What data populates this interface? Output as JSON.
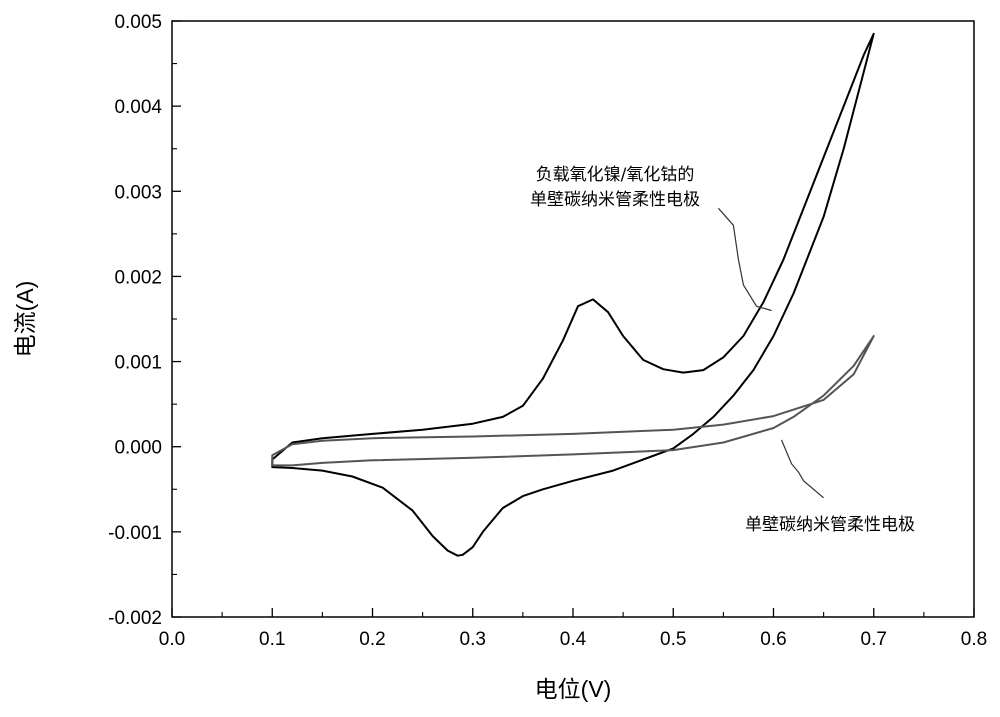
{
  "chart_data": {
    "type": "line",
    "title": "",
    "xlabel": "电位(V)",
    "ylabel": "电流(A)",
    "xlim": [
      0.0,
      0.8
    ],
    "ylim": [
      -0.002,
      0.005
    ],
    "xticks": [
      0.0,
      0.1,
      0.2,
      0.3,
      0.4,
      0.5,
      0.6,
      0.7,
      0.8
    ],
    "xtick_labels": [
      "0.0",
      "0.1",
      "0.2",
      "0.3",
      "0.4",
      "0.5",
      "0.6",
      "0.7",
      "0.8"
    ],
    "yticks": [
      -0.002,
      -0.001,
      0.0,
      0.001,
      0.002,
      0.003,
      0.004,
      0.005
    ],
    "ytick_labels": [
      "-0.002",
      "-0.001",
      "0.000",
      "0.001",
      "0.002",
      "0.003",
      "0.004",
      "0.005"
    ],
    "grid": false,
    "series": [
      {
        "name": "负载氧化镍/氧化钴的单壁碳纳米管柔性电极",
        "color": "#000000",
        "x": [
          0.1,
          0.12,
          0.15,
          0.2,
          0.25,
          0.3,
          0.33,
          0.35,
          0.37,
          0.39,
          0.405,
          0.42,
          0.435,
          0.45,
          0.47,
          0.49,
          0.51,
          0.53,
          0.55,
          0.57,
          0.59,
          0.61,
          0.63,
          0.65,
          0.67,
          0.69,
          0.7,
          0.7,
          0.69,
          0.67,
          0.65,
          0.62,
          0.6,
          0.58,
          0.56,
          0.54,
          0.52,
          0.5,
          0.47,
          0.44,
          0.4,
          0.37,
          0.35,
          0.33,
          0.31,
          0.3,
          0.29,
          0.285,
          0.275,
          0.26,
          0.24,
          0.21,
          0.18,
          0.15,
          0.12,
          0.1,
          0.1
        ],
        "y": [
          -0.00015,
          5e-05,
          0.0001,
          0.00015,
          0.0002,
          0.00027,
          0.00035,
          0.00048,
          0.0008,
          0.00125,
          0.00165,
          0.00173,
          0.00158,
          0.0013,
          0.00102,
          0.00091,
          0.00087,
          0.0009,
          0.00105,
          0.0013,
          0.0017,
          0.0022,
          0.0028,
          0.0034,
          0.004,
          0.0046,
          0.00485,
          0.00485,
          0.0044,
          0.0035,
          0.0027,
          0.0018,
          0.0013,
          0.0009,
          0.0006,
          0.00035,
          0.00015,
          -2e-05,
          -0.00015,
          -0.00028,
          -0.0004,
          -0.0005,
          -0.00058,
          -0.00072,
          -0.001,
          -0.00118,
          -0.00127,
          -0.00128,
          -0.00122,
          -0.00105,
          -0.00075,
          -0.00048,
          -0.00035,
          -0.00028,
          -0.00025,
          -0.00024,
          -0.00015
        ]
      },
      {
        "name": "单壁碳纳米管柔性电极",
        "color": "#555555",
        "x": [
          0.1,
          0.12,
          0.15,
          0.2,
          0.3,
          0.4,
          0.5,
          0.55,
          0.6,
          0.65,
          0.68,
          0.7,
          0.7,
          0.68,
          0.65,
          0.62,
          0.6,
          0.55,
          0.5,
          0.4,
          0.3,
          0.2,
          0.15,
          0.12,
          0.1,
          0.1
        ],
        "y": [
          -0.0001,
          3e-05,
          7e-05,
          0.0001,
          0.00012,
          0.00015,
          0.0002,
          0.00026,
          0.00036,
          0.00055,
          0.00085,
          0.0013,
          0.0013,
          0.00095,
          0.0006,
          0.00035,
          0.00022,
          5e-05,
          -4e-05,
          -9e-05,
          -0.00013,
          -0.00016,
          -0.00019,
          -0.00022,
          -0.00022,
          -0.0001
        ]
      }
    ],
    "annotations": [
      {
        "lines": [
          "负载氧化镍/氧化钴的",
          "单壁碳纳米管柔性电极"
        ],
        "target": [
          0.598,
          0.0016
        ],
        "leader": [
          [
            0.545,
            0.0028
          ],
          [
            0.56,
            0.0026
          ],
          [
            0.565,
            0.0022
          ],
          [
            0.57,
            0.0019
          ],
          [
            0.583,
            0.00165
          ],
          [
            0.598,
            0.0016
          ]
        ]
      },
      {
        "lines": [
          "单壁碳纳米管柔性电极"
        ],
        "target": [
          0.608,
          8e-05
        ],
        "leader": [
          [
            0.608,
            8e-05
          ],
          [
            0.618,
            -0.0002
          ],
          [
            0.625,
            -0.0003
          ],
          [
            0.63,
            -0.0004
          ],
          [
            0.65,
            -0.0006
          ]
        ]
      }
    ]
  }
}
